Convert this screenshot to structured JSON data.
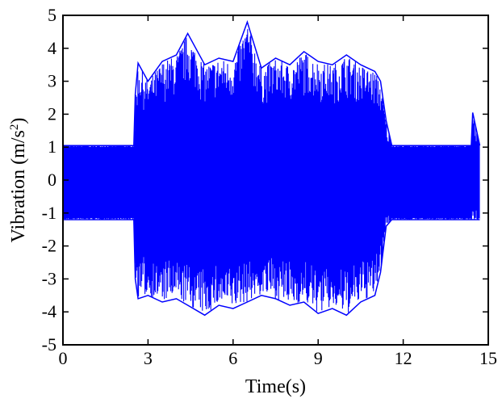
{
  "chart_data": {
    "type": "line",
    "title": "",
    "xlabel": "Time(s)",
    "ylabel_main": "Vibration (m/s",
    "ylabel_sup": "2",
    "ylabel_close": ")",
    "xlim": [
      0,
      15
    ],
    "ylim": [
      -5,
      5
    ],
    "x_ticks": [
      0,
      3,
      6,
      9,
      12,
      15
    ],
    "y_ticks": [
      -5,
      -4,
      -3,
      -2,
      -1,
      0,
      1,
      2,
      3,
      4,
      5
    ],
    "x_tick_labels": [
      "0",
      "3",
      "6",
      "9",
      "12",
      "15"
    ],
    "y_tick_labels": [
      "-5",
      "-4",
      "-3",
      "-2",
      "-1",
      "0",
      "1",
      "2",
      "3",
      "4",
      "5"
    ],
    "grid": false,
    "legend": "none",
    "series": [
      {
        "color": "#0000ff",
        "envelope": {
          "x": [
            0.0,
            2.5,
            2.55,
            2.65,
            3.0,
            3.5,
            4.0,
            4.4,
            5.0,
            5.5,
            6.0,
            6.5,
            7.0,
            7.5,
            8.0,
            8.5,
            9.0,
            9.5,
            10.0,
            10.5,
            11.0,
            11.2,
            11.4,
            11.6,
            14.2,
            14.4,
            14.45,
            14.7
          ],
          "max": [
            1.05,
            1.05,
            2.6,
            3.55,
            3.0,
            3.6,
            3.8,
            4.45,
            3.5,
            3.7,
            3.6,
            4.8,
            3.4,
            3.7,
            3.5,
            3.9,
            3.6,
            3.5,
            3.8,
            3.5,
            3.3,
            3.0,
            1.8,
            1.05,
            1.05,
            1.05,
            2.05,
            1.05
          ],
          "min": [
            -1.2,
            -1.2,
            -3.0,
            -3.6,
            -3.5,
            -3.7,
            -3.6,
            -3.8,
            -4.1,
            -3.8,
            -3.9,
            -3.7,
            -3.5,
            -3.6,
            -3.8,
            -3.7,
            -4.05,
            -3.9,
            -4.1,
            -3.7,
            -3.5,
            -2.8,
            -1.4,
            -1.2,
            -1.2,
            -1.2,
            -1.2,
            -1.2
          ]
        }
      }
    ]
  }
}
